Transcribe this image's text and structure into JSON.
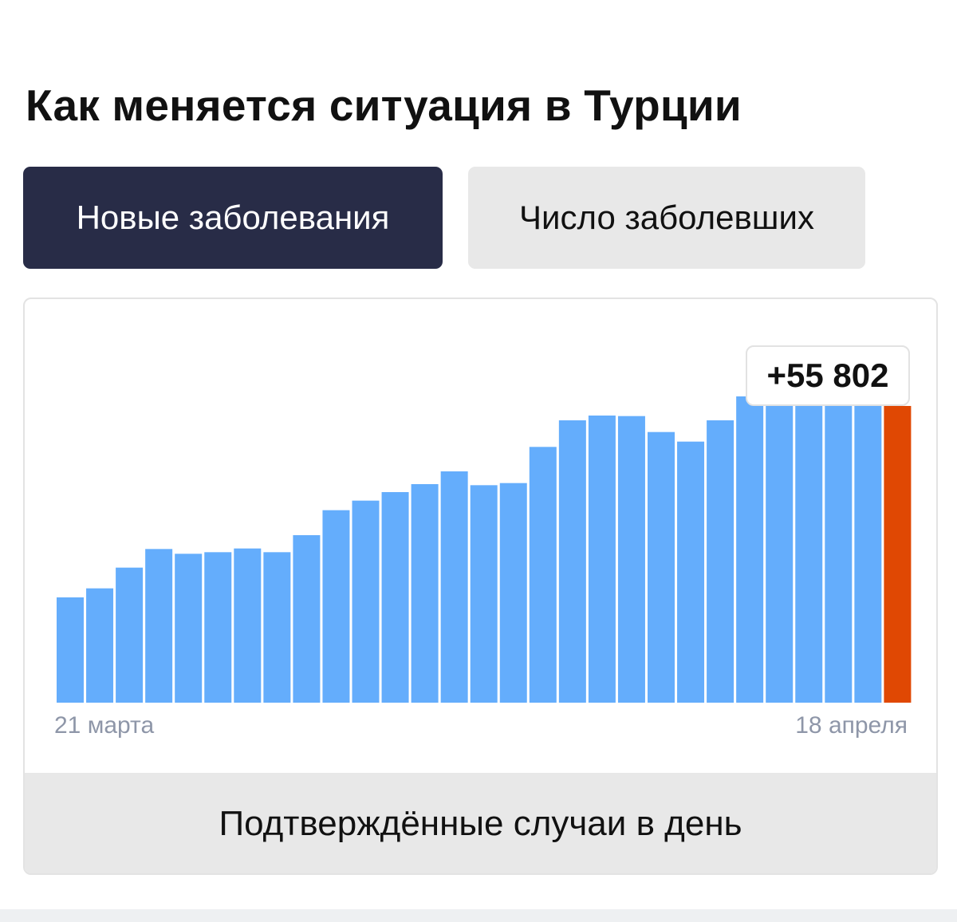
{
  "header": {
    "title": "Как меняется ситуация в Турции"
  },
  "tabs": [
    {
      "label": "Новые заболевания",
      "active": true
    },
    {
      "label": "Число заболевших",
      "active": false
    }
  ],
  "chart": {
    "tooltip_label": "+55 802",
    "footer_label": "Подтверждённые случаи в день",
    "x_start_label": "21 марта",
    "x_end_label": "18 апреля"
  },
  "colors": {
    "bar": "#64adfc",
    "bar_highlight": "#e04803",
    "active_tab": "#282c47",
    "inactive_tab": "#e8e8e8"
  },
  "chart_data": {
    "type": "bar",
    "title": "",
    "xlabel": "",
    "ylabel": "",
    "x_start": "21 марта",
    "x_end": "18 апреля",
    "highlight_index": 28,
    "highlight_value": 55802,
    "values": [
      19800,
      21500,
      25400,
      28900,
      28000,
      28300,
      29000,
      28300,
      31500,
      36200,
      38000,
      39600,
      41100,
      43500,
      40900,
      41300,
      48100,
      53100,
      54000,
      53900,
      50900,
      49100,
      53100,
      57600,
      58300,
      58200,
      58800,
      58200,
      55802
    ],
    "ylim": [
      0,
      60000
    ],
    "grid": false,
    "legend": "none"
  }
}
